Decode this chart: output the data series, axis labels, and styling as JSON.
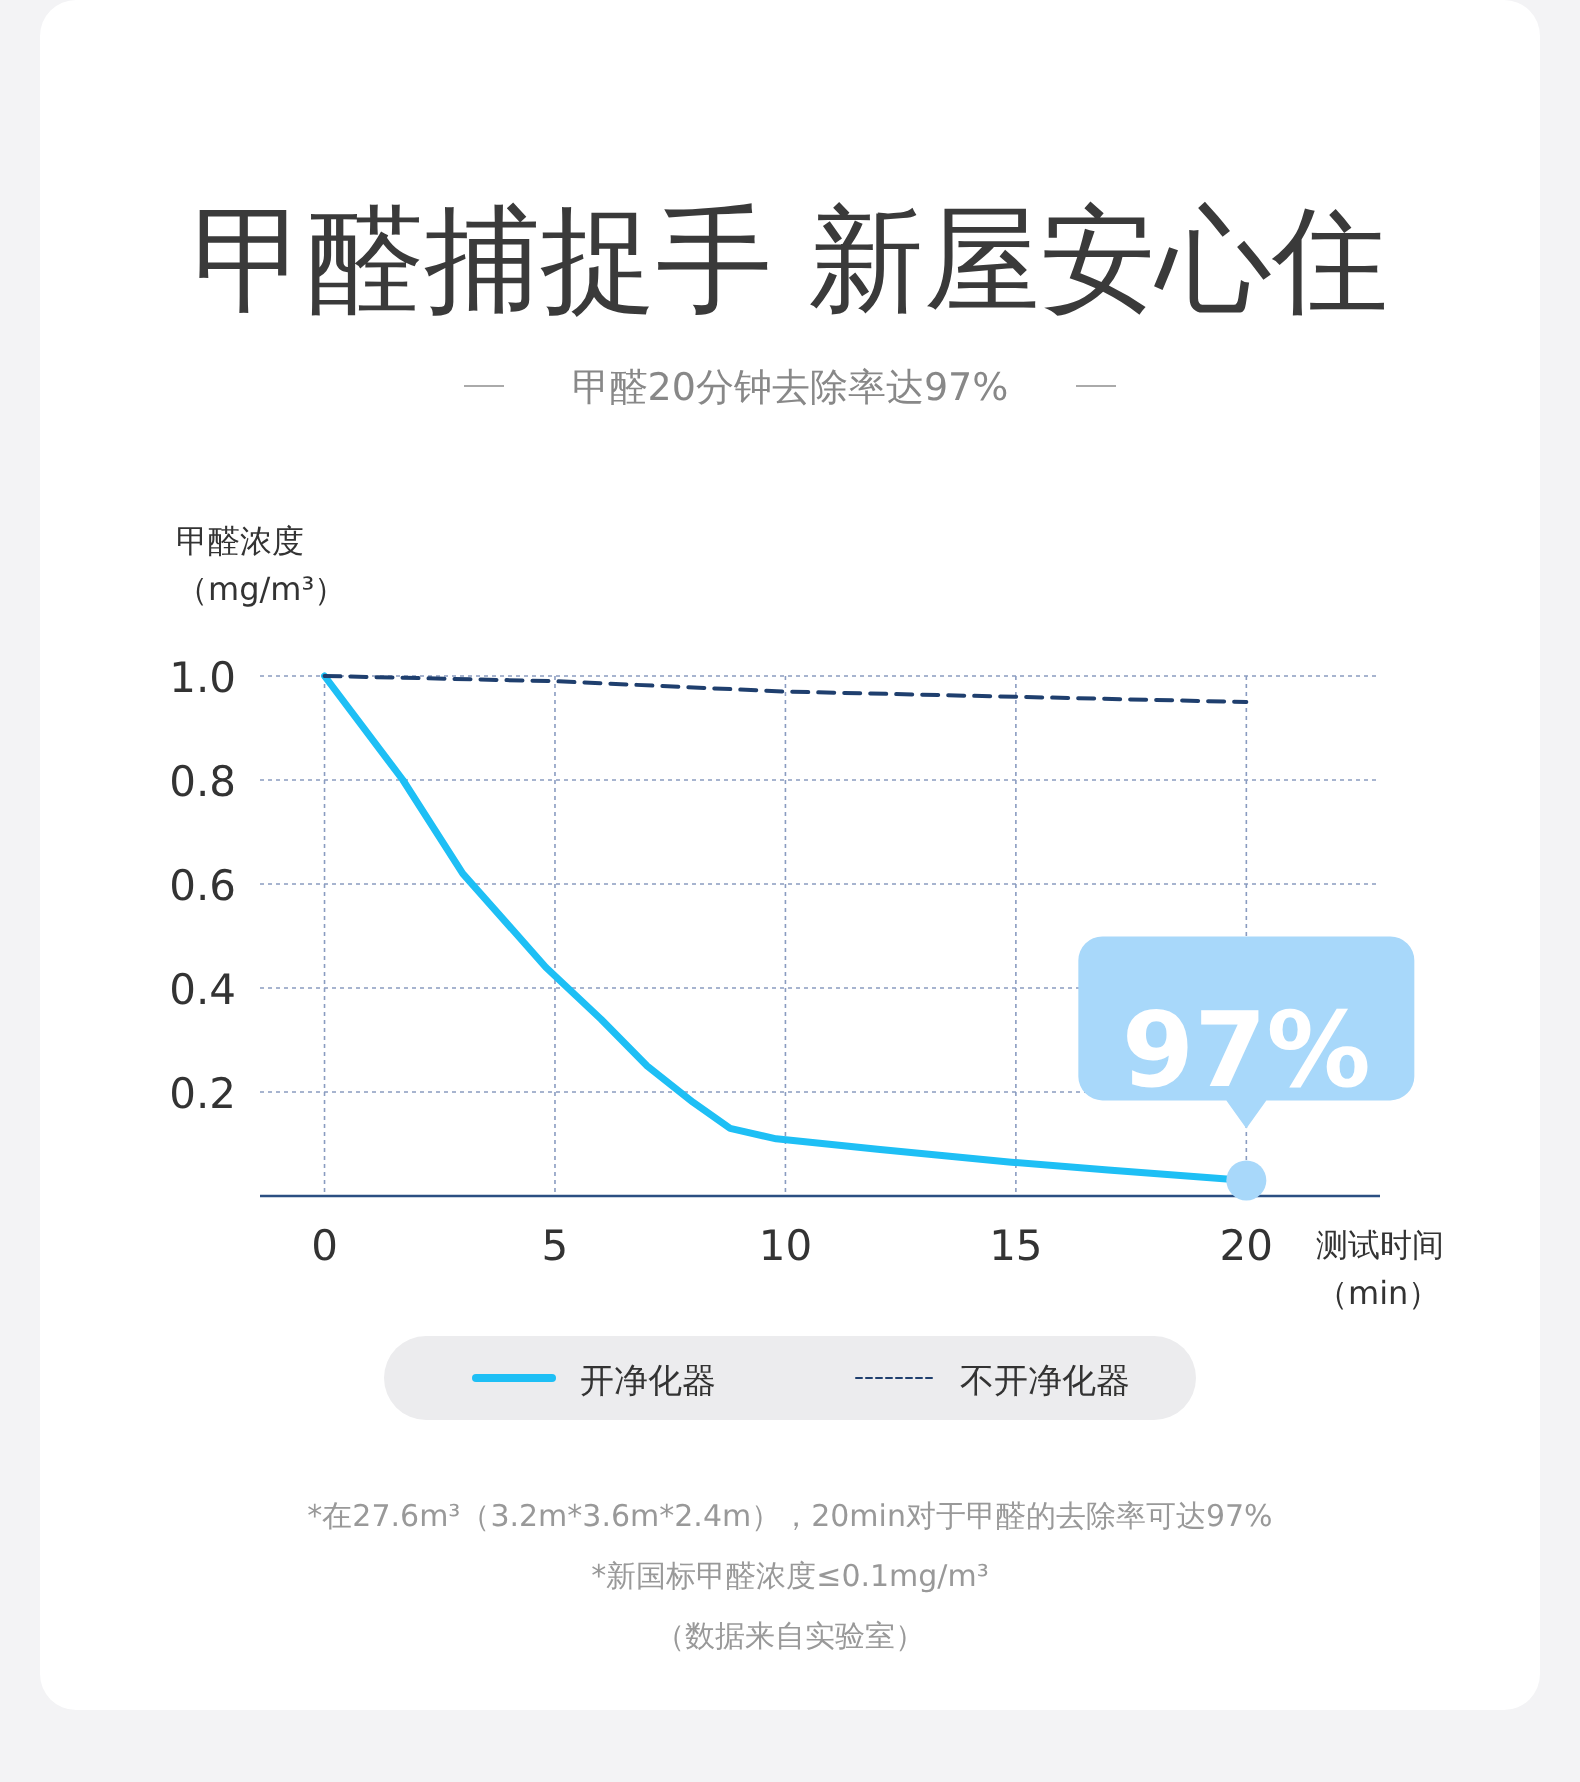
{
  "chart_data": {
    "type": "line",
    "title": "甲醛捕捉手 新屋安心住",
    "subtitle": "甲醛20分钟去除率达97%",
    "ylabel": "甲醛浓度（mg/m³）",
    "xlabel": "测试时间（min）",
    "xlim": [
      -1.4,
      22.9
    ],
    "ylim": [
      0,
      1
    ],
    "xticks": [
      0,
      5,
      10,
      15,
      20
    ],
    "yticks": [
      0.2,
      0.4,
      0.6,
      0.8,
      {
        "value": 1,
        "label": "1.0"
      }
    ],
    "grid": true,
    "legend": "bottom",
    "marker": "none",
    "series": [
      {
        "name": "开净化器",
        "color": "#1ebff5",
        "line_style": "solid",
        "x": [
          0,
          1.7,
          3,
          4.8,
          6,
          7,
          8,
          8.8,
          9.8,
          12,
          14.9,
          17,
          20
        ],
        "values": [
          1,
          0.8,
          0.62,
          0.44,
          0.34,
          0.25,
          0.18,
          0.13,
          0.11,
          0.09,
          0.065,
          0.05,
          0.03
        ]
      },
      {
        "name": "不开净化器",
        "color": "#1f3f6e",
        "line_style": "dashed",
        "x": [
          0,
          5,
          10,
          15,
          20
        ],
        "values": [
          1,
          0.99,
          0.97,
          0.96,
          0.95
        ]
      }
    ],
    "annotations": [
      {
        "text": "97%",
        "x": 20,
        "y": 0.03
      },
      "*在27.6m³（3.2m*3.6m*2.4m），20min对于甲醛的去除率可达97%",
      "*新国标甲醛浓度≤0.1mg/m³",
      "（数据来自实验室）"
    ]
  }
}
